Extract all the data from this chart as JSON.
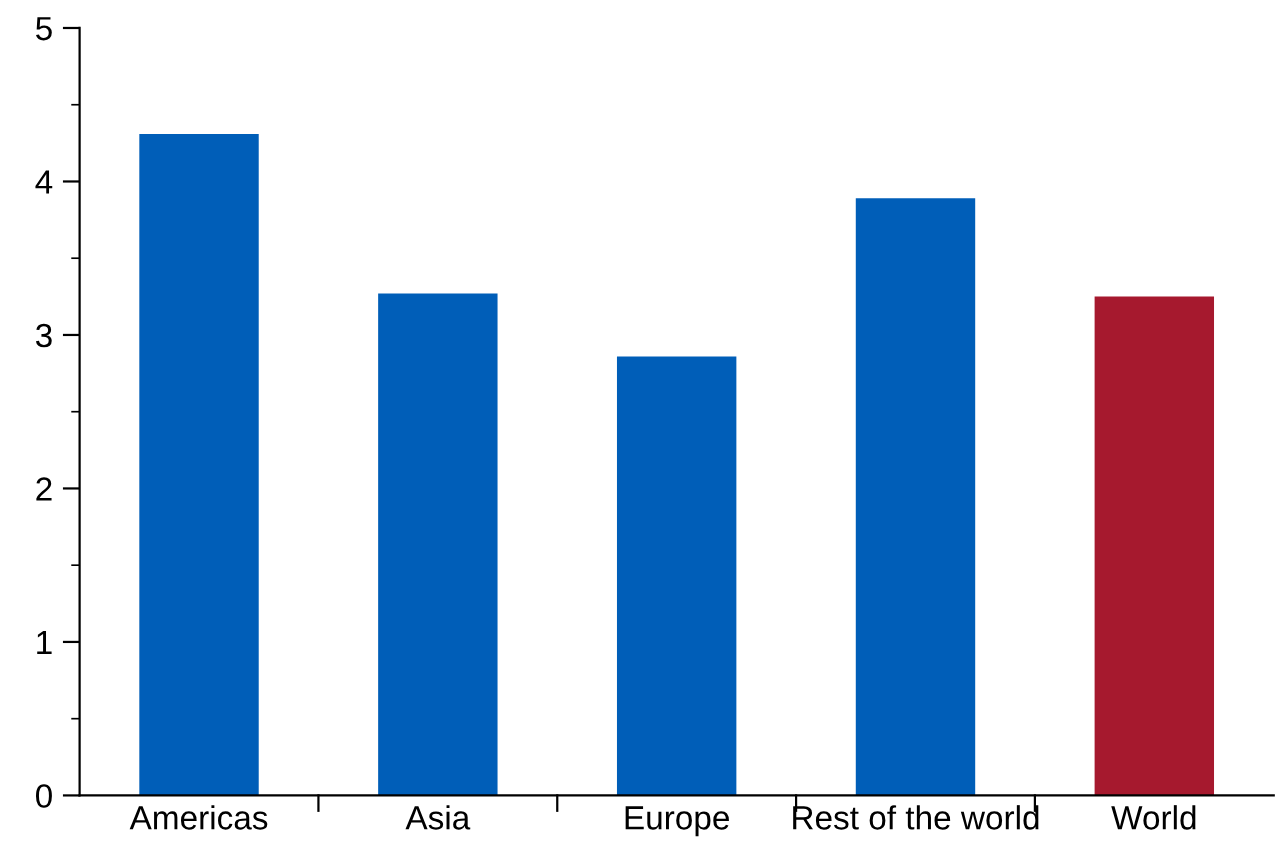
{
  "chart_data": {
    "type": "bar",
    "categories": [
      "Americas",
      "Asia",
      "Europe",
      "Rest of the world",
      "World"
    ],
    "values": [
      4.31,
      3.27,
      2.86,
      3.89,
      3.25
    ],
    "colors": [
      "#005eb8",
      "#005eb8",
      "#005eb8",
      "#005eb8",
      "#a6192e"
    ],
    "ylim": [
      0,
      5
    ],
    "yticks": [
      0,
      {
        "value": 0.5,
        "label": null
      },
      1,
      {
        "value": 1.5,
        "label": null
      },
      2,
      {
        "value": 2.5,
        "label": null
      },
      3,
      {
        "value": 3.5,
        "label": null
      },
      4,
      {
        "value": 4.5,
        "label": null
      },
      5
    ],
    "grid": false
  }
}
